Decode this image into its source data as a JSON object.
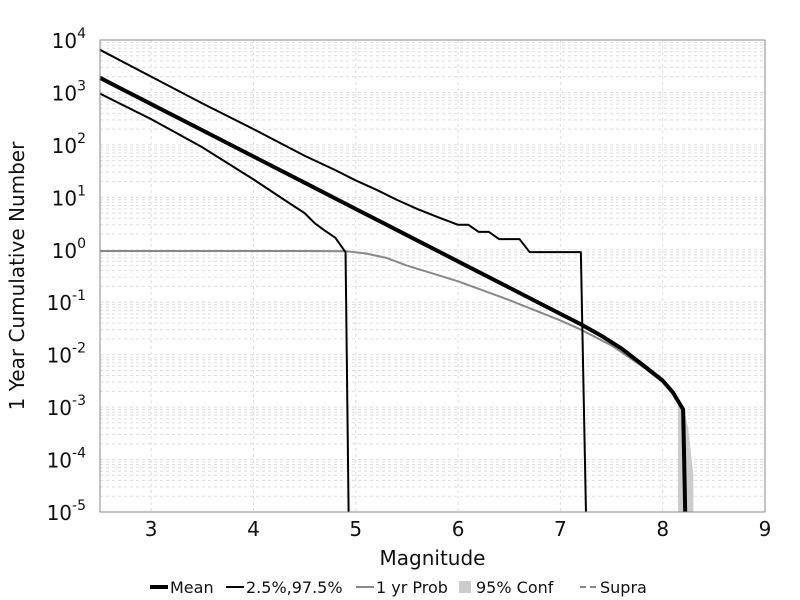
{
  "chart_data": {
    "type": "line",
    "title": "",
    "xlabel": "Magnitude",
    "ylabel": "1 Year Cumulative Number",
    "xlim": [
      2.5,
      9
    ],
    "ylim": [
      1e-05,
      10000.0
    ],
    "yscale": "log",
    "grid": true,
    "x_ticks": [
      {
        "value": 3,
        "label": "3"
      },
      {
        "value": 4,
        "label": "4"
      },
      {
        "value": 5,
        "label": "5"
      },
      {
        "value": 6,
        "label": "6"
      },
      {
        "value": 7,
        "label": "7"
      },
      {
        "value": 8,
        "label": "8"
      },
      {
        "value": 9,
        "label": "9"
      }
    ],
    "y_ticks": [
      {
        "value": 10000.0,
        "base": "10",
        "exp": "4"
      },
      {
        "value": 1000.0,
        "base": "10",
        "exp": "3"
      },
      {
        "value": 100.0,
        "base": "10",
        "exp": "2"
      },
      {
        "value": 10.0,
        "base": "10",
        "exp": "1"
      },
      {
        "value": 1.0,
        "base": "10",
        "exp": "0"
      },
      {
        "value": 0.1,
        "base": "10",
        "exp": "-1"
      },
      {
        "value": 0.01,
        "base": "10",
        "exp": "-2"
      },
      {
        "value": 0.001,
        "base": "10",
        "exp": "-3"
      },
      {
        "value": 0.0001,
        "base": "10",
        "exp": "-4"
      },
      {
        "value": 1e-05,
        "base": "10",
        "exp": "-5"
      }
    ],
    "legend_position": "bottom",
    "legend": [
      {
        "label": "Mean",
        "color": "#000000",
        "style": "thick"
      },
      {
        "label": "2.5%,97.5%",
        "color": "#000000",
        "style": "thin"
      },
      {
        "label": "1 yr Prob",
        "color": "#888888",
        "style": "thin"
      },
      {
        "label": "95% Conf",
        "color": "#cccccc",
        "style": "band"
      },
      {
        "label": "Supra",
        "color": "#888888",
        "style": "dashed"
      }
    ],
    "series": [
      {
        "name": "Mean",
        "color": "#000000",
        "points": [
          [
            2.5,
            1900
          ],
          [
            3,
            600
          ],
          [
            3.5,
            190
          ],
          [
            4,
            60
          ],
          [
            4.5,
            19
          ],
          [
            5,
            6
          ],
          [
            5.5,
            1.9
          ],
          [
            6,
            0.6
          ],
          [
            6.5,
            0.19
          ],
          [
            7,
            0.06
          ],
          [
            7.2,
            0.038
          ],
          [
            7.4,
            0.023
          ],
          [
            7.6,
            0.013
          ],
          [
            7.8,
            0.0065
          ],
          [
            8.0,
            0.0032
          ],
          [
            8.1,
            0.0019
          ],
          [
            8.2,
            0.0009
          ],
          [
            8.22,
            1e-05
          ]
        ]
      },
      {
        "name": "97.5%",
        "color": "#000000",
        "points": [
          [
            2.5,
            6500
          ],
          [
            3,
            2000
          ],
          [
            3.5,
            620
          ],
          [
            4,
            200
          ],
          [
            4.5,
            62
          ],
          [
            4.8,
            33
          ],
          [
            5,
            21
          ],
          [
            5.2,
            14
          ],
          [
            5.4,
            9
          ],
          [
            5.6,
            6
          ],
          [
            5.8,
            4.2
          ],
          [
            6,
            3
          ],
          [
            6.1,
            3
          ],
          [
            6.2,
            2.2
          ],
          [
            6.3,
            2.2
          ],
          [
            6.4,
            1.6
          ],
          [
            6.6,
            1.6
          ],
          [
            6.7,
            0.9
          ],
          [
            7.2,
            0.9
          ],
          [
            7.25,
            1e-05
          ]
        ]
      },
      {
        "name": "2.5%",
        "color": "#000000",
        "points": [
          [
            2.5,
            950
          ],
          [
            3,
            310
          ],
          [
            3.5,
            90
          ],
          [
            4,
            22
          ],
          [
            4.3,
            9
          ],
          [
            4.5,
            5
          ],
          [
            4.6,
            3.2
          ],
          [
            4.7,
            2.3
          ],
          [
            4.8,
            1.7
          ],
          [
            4.9,
            0.9
          ],
          [
            4.93,
            1e-05
          ]
        ]
      },
      {
        "name": "1 yr Prob",
        "color": "#888888",
        "points": [
          [
            2.5,
            0.95
          ],
          [
            4.5,
            0.95
          ],
          [
            4.9,
            0.94
          ],
          [
            5.1,
            0.85
          ],
          [
            5.3,
            0.7
          ],
          [
            5.5,
            0.5
          ],
          [
            6,
            0.25
          ],
          [
            6.5,
            0.11
          ],
          [
            7,
            0.045
          ],
          [
            7.2,
            0.03
          ],
          [
            7.5,
            0.015
          ],
          [
            7.8,
            0.006
          ],
          [
            8,
            0.003
          ],
          [
            8.1,
            0.0018
          ],
          [
            8.2,
            0.0009
          ]
        ]
      }
    ],
    "conf_band": {
      "name": "95% Conf",
      "color": "#cccccc",
      "upper": [
        [
          8.15,
          0.0015
        ],
        [
          8.2,
          0.001
        ],
        [
          8.25,
          0.0004
        ],
        [
          8.3,
          5e-05
        ],
        [
          8.3,
          1e-05
        ]
      ],
      "lower": [
        [
          8.15,
          1e-05
        ]
      ]
    }
  }
}
